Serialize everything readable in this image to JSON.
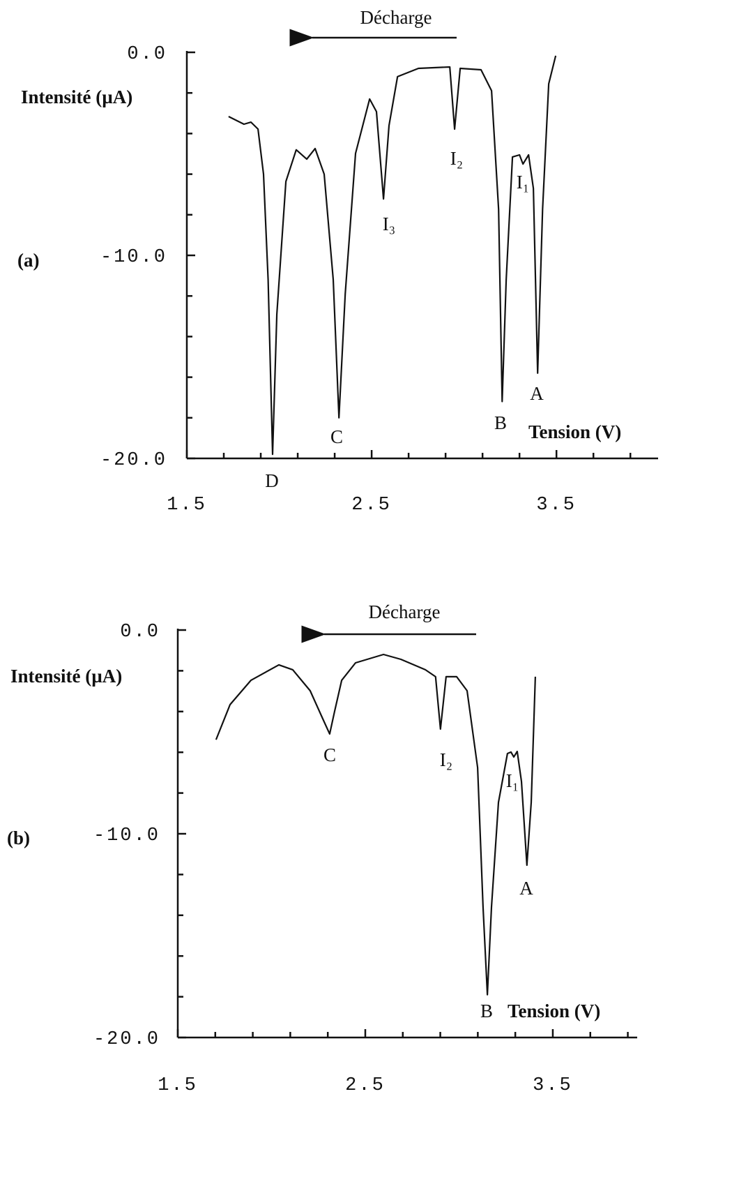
{
  "chart_data": [
    {
      "type": "line",
      "panel": "(a)",
      "title": "Décharge",
      "ylabel": "Intensité (µA)",
      "xlabel": "Tension (V)",
      "xlim": [
        1.5,
        4.05
      ],
      "ylim": [
        -20,
        0
      ],
      "xticks": [
        {
          "value": 1.5,
          "label": "1.5"
        },
        {
          "value": 2.5,
          "label": "2.5"
        },
        {
          "value": 3.5,
          "label": "3.5"
        }
      ],
      "yticks": [
        {
          "value": 0,
          "label": "0.0"
        },
        {
          "value": -10,
          "label": "-10.0"
        },
        {
          "value": -20,
          "label": "-20.0"
        }
      ],
      "xticks_minor": [
        1.7,
        1.9,
        2.1,
        2.3,
        2.7,
        2.9,
        3.1,
        3.3,
        3.7,
        3.9
      ],
      "yticks_minor": [
        -2,
        -4,
        -6,
        -8,
        -12,
        -14,
        -16,
        -18
      ],
      "color": "#111111",
      "annotations": [
        "D",
        "C",
        "I₃",
        "I₂",
        "I₁",
        "B",
        "A"
      ],
      "x": [
        1.726,
        1.809,
        1.847,
        1.885,
        1.915,
        1.94,
        1.964,
        1.987,
        2.036,
        2.092,
        2.149,
        2.194,
        2.243,
        2.292,
        2.323,
        2.357,
        2.413,
        2.489,
        2.526,
        2.564,
        2.594,
        2.64,
        2.753,
        2.923,
        2.949,
        2.979,
        3.092,
        3.149,
        3.187,
        3.206,
        3.228,
        3.262,
        3.3,
        3.319,
        3.349,
        3.375,
        3.398,
        3.425,
        3.458,
        3.496
      ],
      "values": [
        -3.16,
        -3.54,
        -3.44,
        -3.78,
        -6.0,
        -11.2,
        -19.8,
        -12.9,
        -6.36,
        -4.8,
        -5.26,
        -4.74,
        -6.0,
        -11.2,
        -18.0,
        -11.9,
        -4.98,
        -2.3,
        -2.92,
        -7.22,
        -3.61,
        -1.2,
        -0.79,
        -0.72,
        -3.78,
        -0.79,
        -0.86,
        -1.89,
        -7.73,
        -17.2,
        -11.2,
        -5.15,
        -5.05,
        -5.5,
        -5.05,
        -6.7,
        -15.8,
        -7.73,
        -1.55,
        -0.17
      ]
    },
    {
      "type": "line",
      "panel": "(b)",
      "title": "Décharge",
      "ylabel": "Intensité (µA)",
      "xlabel": "Tension (V)",
      "xlim": [
        1.5,
        3.95
      ],
      "ylim": [
        -20,
        0
      ],
      "xticks": [
        {
          "value": 1.5,
          "label": "1.5"
        },
        {
          "value": 2.5,
          "label": "2.5"
        },
        {
          "value": 3.5,
          "label": "3.5"
        }
      ],
      "yticks": [
        {
          "value": 0,
          "label": "0.0"
        },
        {
          "value": -10,
          "label": "-10.0"
        },
        {
          "value": -20,
          "label": "-20.0"
        }
      ],
      "xticks_minor": [
        1.7,
        1.9,
        2.1,
        2.3,
        2.7,
        2.9,
        3.1,
        3.3,
        3.7,
        3.9
      ],
      "yticks_minor": [
        -2,
        -4,
        -6,
        -8,
        -12,
        -14,
        -16,
        -18
      ],
      "color": "#111111",
      "annotations": [
        "C",
        "I₂",
        "I₁",
        "B",
        "A"
      ],
      "x": [
        1.704,
        1.779,
        1.89,
        2.039,
        2.113,
        2.206,
        2.273,
        2.31,
        2.336,
        2.374,
        2.448,
        2.597,
        2.69,
        2.82,
        2.875,
        2.901,
        2.931,
        2.987,
        3.043,
        3.099,
        3.128,
        3.151,
        3.173,
        3.21,
        3.258,
        3.277,
        3.292,
        3.31,
        3.333,
        3.362,
        3.385,
        3.407
      ],
      "values": [
        -5.38,
        -3.66,
        -2.47,
        -1.71,
        -1.95,
        -2.98,
        -4.35,
        -5.1,
        -4.0,
        -2.47,
        -1.61,
        -1.2,
        -1.44,
        -1.95,
        -2.29,
        -4.86,
        -2.29,
        -2.29,
        -2.98,
        -6.75,
        -13.6,
        -17.9,
        -13.6,
        -8.46,
        -6.06,
        -5.99,
        -6.23,
        -5.96,
        -7.43,
        -11.54,
        -8.46,
        -2.29
      ]
    }
  ]
}
